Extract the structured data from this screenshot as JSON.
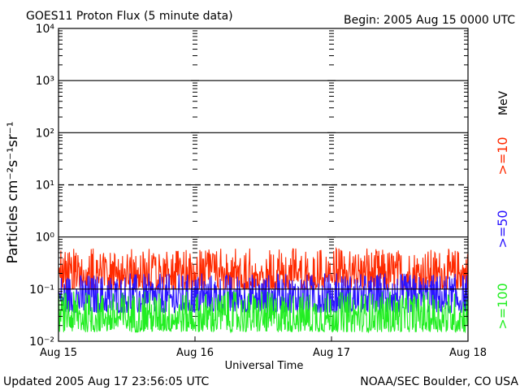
{
  "header": {
    "title": "GOES11 Proton Flux (5 minute data)",
    "begin": "Begin: 2005 Aug 15 0000 UTC"
  },
  "footer": {
    "updated": "Updated 2005 Aug 17 23:56:05 UTC",
    "source": "NOAA/SEC Boulder, CO USA"
  },
  "colors": {
    "ge10": "#ff2a00",
    "ge50": "#2a14ff",
    "ge100": "#22ee22",
    "axis": "#000000"
  },
  "legend": {
    "unit": "MeV",
    "ge10": ">=10",
    "ge50": ">=50",
    "ge100": ">=100"
  },
  "chart_data": {
    "type": "line",
    "title": "GOES11 Proton Flux (5 minute data)",
    "xlabel": "Universal Time",
    "ylabel": "Particles cm⁻²s⁻¹sr⁻¹",
    "yscale": "log",
    "ylim": [
      0.01,
      10000
    ],
    "xlim": [
      0,
      3
    ],
    "x_tick_labels": [
      "Aug 15",
      "Aug 16",
      "Aug 17",
      "Aug 18"
    ],
    "y_tick_labels": [
      "10⁻²",
      "10⁻¹",
      "10⁰",
      "10¹",
      "10²",
      "10³",
      "10⁴"
    ],
    "x_units": "days since 2005 Aug 15 00:00 UTC",
    "reference_lines": [
      {
        "value": 10,
        "style": "dashed"
      },
      {
        "value": 0.1,
        "style": "solid"
      }
    ],
    "series": [
      {
        "name": ">=10 MeV",
        "color": "#ff2a00",
        "typical_range": [
          0.1,
          0.6
        ]
      },
      {
        "name": ">=50 MeV",
        "color": "#2a14ff",
        "typical_range": [
          0.035,
          0.2
        ]
      },
      {
        "name": ">=100 MeV",
        "color": "#22ee22",
        "typical_range": [
          0.015,
          0.09
        ]
      }
    ]
  }
}
